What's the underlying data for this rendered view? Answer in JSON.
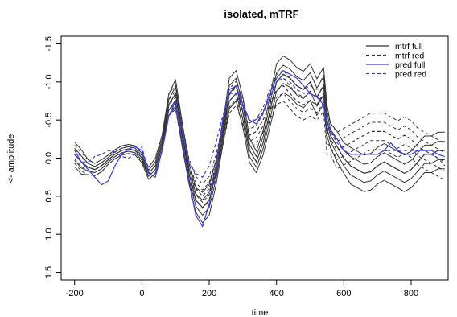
{
  "chart_data": {
    "type": "line",
    "title": "isolated, mTRF",
    "xlabel": "time",
    "ylabel": "<- amplitude",
    "xlim": [
      -240,
      910
    ],
    "ylim": [
      1.6,
      -1.6
    ],
    "y_reversed": true,
    "x_ticks": [
      -200,
      0,
      200,
      400,
      600,
      800
    ],
    "y_ticks": [
      -1.5,
      -1.0,
      -0.5,
      0.0,
      0.5,
      1.0,
      1.5
    ],
    "y_tick_labels": [
      "-1.5",
      "-1.0",
      "-0.5",
      "0.0",
      "0.5",
      "1.0",
      "1.5"
    ],
    "grid": false,
    "legend_position": "top-right",
    "colors": {
      "black": "#333333",
      "blue": "#3b3be0"
    },
    "legend": [
      {
        "label": "mtrf full",
        "color": "#333333",
        "dash": "solid"
      },
      {
        "label": "mtrf red",
        "color": "#333333",
        "dash": "dashed"
      },
      {
        "label": "pred full",
        "color": "#3b3be0",
        "dash": "solid"
      },
      {
        "label": "pred red",
        "color": "#3b3be0",
        "dash": "dashed"
      }
    ],
    "x": [
      -200,
      -180,
      -160,
      -140,
      -120,
      -100,
      -80,
      -60,
      -40,
      -20,
      0,
      20,
      40,
      60,
      80,
      100,
      120,
      140,
      160,
      180,
      200,
      220,
      240,
      260,
      280,
      300,
      320,
      340,
      360,
      380,
      400,
      420,
      440,
      460,
      480,
      500,
      520,
      540,
      550,
      560,
      580,
      600,
      620,
      640,
      660,
      680,
      700,
      720,
      740,
      760,
      780,
      800,
      820,
      840,
      860,
      880,
      900
    ],
    "series": [
      {
        "style": "mtrf full",
        "values": [
          -0.05,
          0.05,
          0.12,
          0.15,
          0.1,
          0.02,
          -0.05,
          -0.1,
          -0.12,
          -0.1,
          0.0,
          0.2,
          0.1,
          -0.2,
          -0.7,
          -0.85,
          -0.3,
          0.2,
          0.55,
          0.65,
          0.55,
          0.2,
          -0.3,
          -0.85,
          -0.95,
          -0.6,
          -0.1,
          0.05,
          -0.2,
          -0.6,
          -1.0,
          -1.1,
          -1.05,
          -0.95,
          -0.9,
          -1.0,
          -0.8,
          -0.95,
          -0.5,
          -0.3,
          -0.15,
          0.0,
          0.1,
          0.15,
          0.2,
          0.18,
          0.1,
          0.05,
          0.1,
          0.15,
          0.2,
          0.15,
          0.05,
          -0.05,
          -0.05,
          -0.1,
          -0.1
        ],
        "band": [
          0.08,
          0.08,
          0.05,
          0.04,
          0.04,
          0.03,
          0.03,
          0.03,
          0.03,
          0.03,
          0.03,
          0.04,
          0.05,
          0.05,
          0.07,
          0.09,
          0.08,
          0.07,
          0.08,
          0.1,
          0.1,
          0.08,
          0.07,
          0.1,
          0.1,
          0.1,
          0.08,
          0.07,
          0.08,
          0.1,
          0.12,
          0.12,
          0.12,
          0.12,
          0.12,
          0.12,
          0.12,
          0.12,
          0.1,
          0.08,
          0.1,
          0.1,
          0.12,
          0.12,
          0.12,
          0.12,
          0.12,
          0.12,
          0.12,
          0.12,
          0.12,
          0.12,
          0.12,
          0.12,
          0.12,
          0.12,
          0.12
        ]
      },
      {
        "style": "mtrf red",
        "values": [
          -0.05,
          0.05,
          0.12,
          0.15,
          0.1,
          0.02,
          -0.05,
          -0.1,
          -0.12,
          -0.1,
          0.0,
          0.2,
          0.1,
          -0.2,
          -0.7,
          -0.8,
          -0.3,
          0.15,
          0.4,
          0.5,
          0.4,
          0.1,
          -0.3,
          -0.75,
          -0.85,
          -0.6,
          -0.3,
          -0.35,
          -0.5,
          -0.7,
          -0.9,
          -0.95,
          -0.85,
          -0.75,
          -0.7,
          -0.75,
          -0.7,
          -0.85,
          -0.35,
          -0.25,
          -0.1,
          -0.15,
          -0.2,
          -0.25,
          -0.3,
          -0.35,
          -0.35,
          -0.35,
          -0.3,
          -0.25,
          -0.3,
          -0.25,
          -0.15,
          -0.1,
          -0.05,
          0.0,
          0.05
        ],
        "band": [
          0.06,
          0.06,
          0.05,
          0.04,
          0.04,
          0.03,
          0.03,
          0.03,
          0.03,
          0.03,
          0.03,
          0.04,
          0.05,
          0.05,
          0.07,
          0.08,
          0.07,
          0.07,
          0.08,
          0.08,
          0.08,
          0.07,
          0.07,
          0.08,
          0.08,
          0.08,
          0.08,
          0.08,
          0.08,
          0.1,
          0.1,
          0.1,
          0.1,
          0.1,
          0.1,
          0.1,
          0.1,
          0.12,
          0.15,
          0.1,
          0.12,
          0.12,
          0.12,
          0.12,
          0.12,
          0.12,
          0.12,
          0.12,
          0.12,
          0.12,
          0.12,
          0.12,
          0.12,
          0.12,
          0.12,
          0.12,
          0.12
        ]
      },
      {
        "style": "pred full",
        "values": [
          -0.1,
          0.05,
          0.15,
          0.25,
          0.35,
          0.3,
          0.1,
          -0.05,
          -0.12,
          -0.15,
          -0.1,
          0.2,
          0.25,
          -0.1,
          -0.55,
          -0.75,
          -0.2,
          0.3,
          0.75,
          0.9,
          0.6,
          0.1,
          -0.5,
          -0.9,
          -0.95,
          -0.7,
          -0.5,
          -0.45,
          -0.6,
          -0.85,
          -1.05,
          -1.15,
          -1.1,
          -1.05,
          -0.95,
          -0.85,
          -0.8,
          -0.7,
          -0.4,
          -0.35,
          -0.25,
          -0.1,
          -0.05,
          -0.05,
          -0.05,
          -0.05,
          -0.05,
          -0.1,
          -0.2,
          -0.1,
          -0.05,
          -0.05,
          -0.1,
          -0.1,
          -0.1,
          -0.05,
          -0.02
        ]
      },
      {
        "style": "pred red",
        "values": [
          -0.05,
          0.05,
          0.05,
          -0.02,
          -0.05,
          -0.1,
          -0.08,
          -0.02,
          0.0,
          -0.05,
          -0.15,
          0.2,
          0.2,
          -0.1,
          -0.55,
          -0.7,
          -0.35,
          0.05,
          0.2,
          0.25,
          0.1,
          -0.2,
          -0.55,
          -0.85,
          -0.85,
          -0.65,
          -0.5,
          -0.5,
          -0.6,
          -0.8,
          -1.0,
          -1.05,
          -1.0,
          -0.9,
          -0.85,
          -0.85,
          -0.8,
          -0.75,
          -0.5,
          -0.35,
          -0.2,
          -0.1,
          -0.05,
          -0.05,
          -0.05,
          -0.05,
          -0.05,
          -0.1,
          -0.1,
          -0.1,
          -0.1,
          -0.1,
          -0.1,
          -0.1,
          -0.05,
          0.0,
          0.1
        ]
      }
    ]
  }
}
